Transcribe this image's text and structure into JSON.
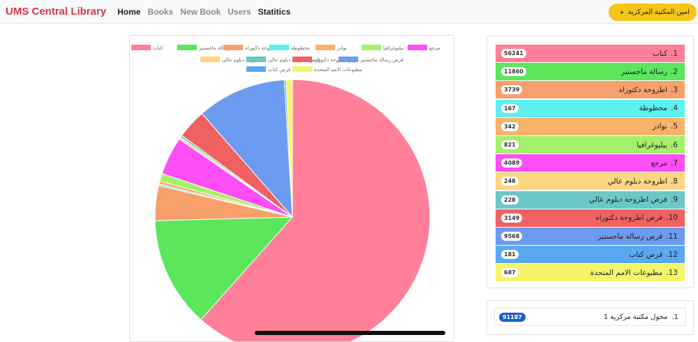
{
  "navbar": {
    "brand": "UMS Central Library",
    "links": [
      "Home",
      "Books",
      "New Book",
      "Users",
      "Statitics"
    ],
    "active_links": [
      0,
      4
    ],
    "user_label": "امين المكتبة المركزية",
    "caret": "▸"
  },
  "chart_data": {
    "type": "pie",
    "categories": [
      "كتاب",
      "رسالة ماجستير",
      "اطروحة دكتوراه",
      "مخطوطة",
      "نوادر",
      "بيليوغرافيا",
      "مرجع",
      "اطروحة دبلوم عالي",
      "قرص اطروحة دبلوم عالي",
      "قرص اطروحة دكتوراه",
      "قرص رسالة ماجستير",
      "قرص كتاب",
      "مطبوعات الامم المتحدة"
    ],
    "values": [
      56241,
      11860,
      3739,
      167,
      342,
      821,
      4089,
      248,
      228,
      3149,
      9568,
      181,
      687
    ],
    "colors": [
      "#ff8098",
      "#5ce65c",
      "#f7a06b",
      "#5cf0f0",
      "#f9b26b",
      "#a4f06b",
      "#ff4df7",
      "#ffd580",
      "#6cc7c7",
      "#f06262",
      "#6c9bf0",
      "#5aa9f0",
      "#f5f56b"
    ],
    "legend_position": "top"
  },
  "list": {
    "items": [
      {
        "label": "كتاب",
        "count": "56241",
        "color": "#ff8098"
      },
      {
        "label": "رسالة ماجستير",
        "count": "11860",
        "color": "#5ce65c"
      },
      {
        "label": "اطروحة دكتوراه",
        "count": "3739",
        "color": "#f7a06b"
      },
      {
        "label": "مخطوطة",
        "count": "167",
        "color": "#5cf0f0"
      },
      {
        "label": "نوادر",
        "count": "342",
        "color": "#f9b26b"
      },
      {
        "label": "بيليوغرافيا",
        "count": "821",
        "color": "#a4f06b"
      },
      {
        "label": "مرجع",
        "count": "4089",
        "color": "#ff4df7"
      },
      {
        "label": "اطروحة دبلوم عالي",
        "count": "248",
        "color": "#ffd580"
      },
      {
        "label": "قرص اطروحة دبلوم عالي",
        "count": "228",
        "color": "#6cc7c7"
      },
      {
        "label": "قرص اطروحة دكتوراه",
        "count": "3149",
        "color": "#f06262"
      },
      {
        "label": "قرص رسالة ماجستير",
        "count": "9568",
        "color": "#6c9bf0"
      },
      {
        "label": "قرص كتاب",
        "count": "181",
        "color": "#5aa9f0"
      },
      {
        "label": "مطبوعات الامم المتحدة",
        "count": "687",
        "color": "#f5f56b"
      }
    ]
  },
  "total": {
    "label": "مخول مكتبة مركزية 1",
    "number": "1.",
    "count": "91187"
  }
}
